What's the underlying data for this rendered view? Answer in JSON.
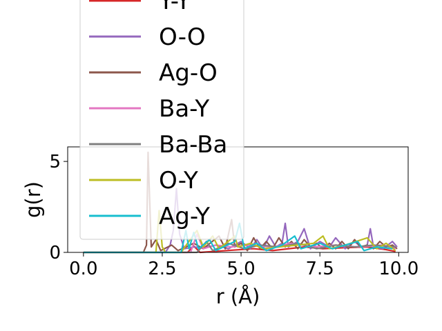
{
  "chart_data": {
    "type": "line",
    "title": "",
    "xlabel": "r (Å)",
    "ylabel": "g(r)",
    "xlim": [
      -0.5,
      10.3
    ],
    "ylim": [
      0,
      5.8
    ],
    "xticks": [
      0.0,
      2.5,
      5.0,
      7.5,
      10.0
    ],
    "xtick_labels": [
      "0.0",
      "2.5",
      "5.0",
      "7.5",
      "10.0"
    ],
    "yticks": [
      0,
      5
    ],
    "ytick_labels": [
      "0",
      "5"
    ],
    "grid": false,
    "legend_position": "upper-left",
    "series": [
      {
        "name": "Y-Y",
        "color": "#d62728",
        "points": [
          [
            0,
            0
          ],
          [
            3.3,
            0
          ],
          [
            3.5,
            0.35
          ],
          [
            3.7,
            0
          ],
          [
            5.4,
            0.2
          ],
          [
            6.0,
            0.1
          ],
          [
            7.0,
            0.3
          ],
          [
            7.6,
            0.2
          ],
          [
            8.2,
            0.25
          ],
          [
            9.0,
            0.3
          ],
          [
            9.6,
            0.15
          ],
          [
            9.9,
            0.05
          ]
        ]
      },
      {
        "name": "O-O",
        "color": "#9467bd",
        "points": [
          [
            0,
            0
          ],
          [
            2.6,
            0
          ],
          [
            2.75,
            0.4
          ],
          [
            2.85,
            1.2
          ],
          [
            2.95,
            3.5
          ],
          [
            3.05,
            1.0
          ],
          [
            3.2,
            0.2
          ],
          [
            3.5,
            0.3
          ],
          [
            3.8,
            0.25
          ],
          [
            4.2,
            0.4
          ],
          [
            4.6,
            0.2
          ],
          [
            5.0,
            0.6
          ],
          [
            5.3,
            0.2
          ],
          [
            5.5,
            0.7
          ],
          [
            5.7,
            0.2
          ],
          [
            5.9,
            0.9
          ],
          [
            6.1,
            0.3
          ],
          [
            6.3,
            0.5
          ],
          [
            6.4,
            1.6
          ],
          [
            6.5,
            0.3
          ],
          [
            6.8,
            0.6
          ],
          [
            7.0,
            1.3
          ],
          [
            7.2,
            0.2
          ],
          [
            7.5,
            0.6
          ],
          [
            7.8,
            0.3
          ],
          [
            8.0,
            0.8
          ],
          [
            8.3,
            0.2
          ],
          [
            8.6,
            0.6
          ],
          [
            8.8,
            0.3
          ],
          [
            9.0,
            0.4
          ],
          [
            9.1,
            1.3
          ],
          [
            9.2,
            0.3
          ],
          [
            9.5,
            0.2
          ],
          [
            9.8,
            0.6
          ],
          [
            9.95,
            0.3
          ]
        ]
      },
      {
        "name": "Ag-O",
        "color": "#8c564b",
        "points": [
          [
            0,
            0
          ],
          [
            1.9,
            0
          ],
          [
            2.0,
            0.4
          ],
          [
            2.05,
            5.5
          ],
          [
            2.15,
            0.3
          ],
          [
            2.3,
            0.7
          ],
          [
            2.45,
            0.1
          ],
          [
            2.8,
            0.4
          ],
          [
            3.0,
            0.1
          ],
          [
            3.5,
            0.5
          ],
          [
            3.8,
            0.2
          ],
          [
            4.3,
            0.9
          ],
          [
            4.5,
            0.2
          ],
          [
            4.7,
            1.8
          ],
          [
            4.8,
            0.3
          ],
          [
            5.0,
            0.5
          ],
          [
            5.2,
            0.1
          ],
          [
            5.4,
            0.8
          ],
          [
            5.6,
            0.2
          ],
          [
            5.8,
            0.6
          ],
          [
            6.0,
            0.2
          ],
          [
            6.2,
            0.8
          ],
          [
            6.4,
            0.3
          ],
          [
            6.6,
            0.6
          ],
          [
            6.8,
            0.2
          ],
          [
            7.0,
            0.7
          ],
          [
            7.2,
            0.3
          ],
          [
            7.4,
            0.5
          ],
          [
            7.6,
            0.2
          ],
          [
            7.8,
            0.5
          ],
          [
            8.0,
            0.2
          ],
          [
            8.2,
            0.6
          ],
          [
            8.4,
            0.2
          ],
          [
            8.6,
            0.7
          ],
          [
            8.8,
            0.3
          ],
          [
            9.0,
            0.4
          ],
          [
            9.2,
            0.2
          ],
          [
            9.4,
            0.6
          ],
          [
            9.6,
            0.3
          ],
          [
            9.8,
            0.4
          ],
          [
            9.95,
            0.2
          ]
        ]
      },
      {
        "name": "Ba-Y",
        "color": "#e377c2",
        "points": [
          [
            0,
            0
          ],
          [
            3.4,
            0
          ],
          [
            3.6,
            1.0
          ],
          [
            3.8,
            0.2
          ],
          [
            4.2,
            0.4
          ],
          [
            4.7,
            0.3
          ],
          [
            5.2,
            0.4
          ],
          [
            6.0,
            0.3
          ],
          [
            6.6,
            0.5
          ],
          [
            7.3,
            0.3
          ],
          [
            8.0,
            0.4
          ],
          [
            8.7,
            0.3
          ],
          [
            9.5,
            0.4
          ],
          [
            9.9,
            0.2
          ]
        ]
      },
      {
        "name": "Ba-Ba",
        "color": "#7f7f7f",
        "points": [
          [
            0,
            0
          ],
          [
            3.6,
            0
          ],
          [
            3.9,
            0.6
          ],
          [
            4.1,
            0.1
          ],
          [
            4.6,
            0.5
          ],
          [
            5.1,
            0.2
          ],
          [
            5.6,
            0.4
          ],
          [
            6.2,
            0.3
          ],
          [
            6.8,
            0.5
          ],
          [
            7.4,
            0.2
          ],
          [
            8.0,
            0.4
          ],
          [
            8.6,
            0.3
          ],
          [
            9.2,
            0.4
          ],
          [
            9.9,
            0.3
          ]
        ]
      },
      {
        "name": "O-Y",
        "color": "#bcbd22",
        "points": [
          [
            0,
            0
          ],
          [
            2.3,
            0
          ],
          [
            2.4,
            2.3
          ],
          [
            2.5,
            0.3
          ],
          [
            2.6,
            0
          ],
          [
            3.1,
            0
          ],
          [
            3.3,
            0.5
          ],
          [
            3.6,
            1.2
          ],
          [
            3.8,
            0.3
          ],
          [
            4.1,
            0.9
          ],
          [
            4.3,
            0.2
          ],
          [
            4.8,
            0.9
          ],
          [
            4.9,
            0.3
          ],
          [
            5.3,
            0.5
          ],
          [
            5.7,
            0.2
          ],
          [
            6.2,
            0.3
          ],
          [
            6.8,
            0.4
          ],
          [
            7.3,
            0.5
          ],
          [
            7.6,
            0.9
          ],
          [
            7.8,
            0.2
          ],
          [
            8.3,
            0.4
          ],
          [
            9.0,
            0.8
          ],
          [
            9.3,
            0.2
          ],
          [
            9.6,
            0.5
          ],
          [
            9.9,
            0.1
          ]
        ]
      },
      {
        "name": "Ag-Y",
        "color": "#17becf",
        "points": [
          [
            0,
            0
          ],
          [
            3.1,
            0
          ],
          [
            3.25,
            1.2
          ],
          [
            3.35,
            0.2
          ],
          [
            3.5,
            1.1
          ],
          [
            3.65,
            0.2
          ],
          [
            4.0,
            0.7
          ],
          [
            4.2,
            0.1
          ],
          [
            4.8,
            0.6
          ],
          [
            4.95,
            1.6
          ],
          [
            5.1,
            0.2
          ],
          [
            5.5,
            0.5
          ],
          [
            5.8,
            0.1
          ],
          [
            6.3,
            0.4
          ],
          [
            6.7,
            0.9
          ],
          [
            6.9,
            0.2
          ],
          [
            7.5,
            0.5
          ],
          [
            7.9,
            0.2
          ],
          [
            8.3,
            0.4
          ],
          [
            8.7,
            0.6
          ],
          [
            8.9,
            0.1
          ],
          [
            9.3,
            0.3
          ],
          [
            9.8,
            0.2
          ]
        ]
      }
    ]
  }
}
